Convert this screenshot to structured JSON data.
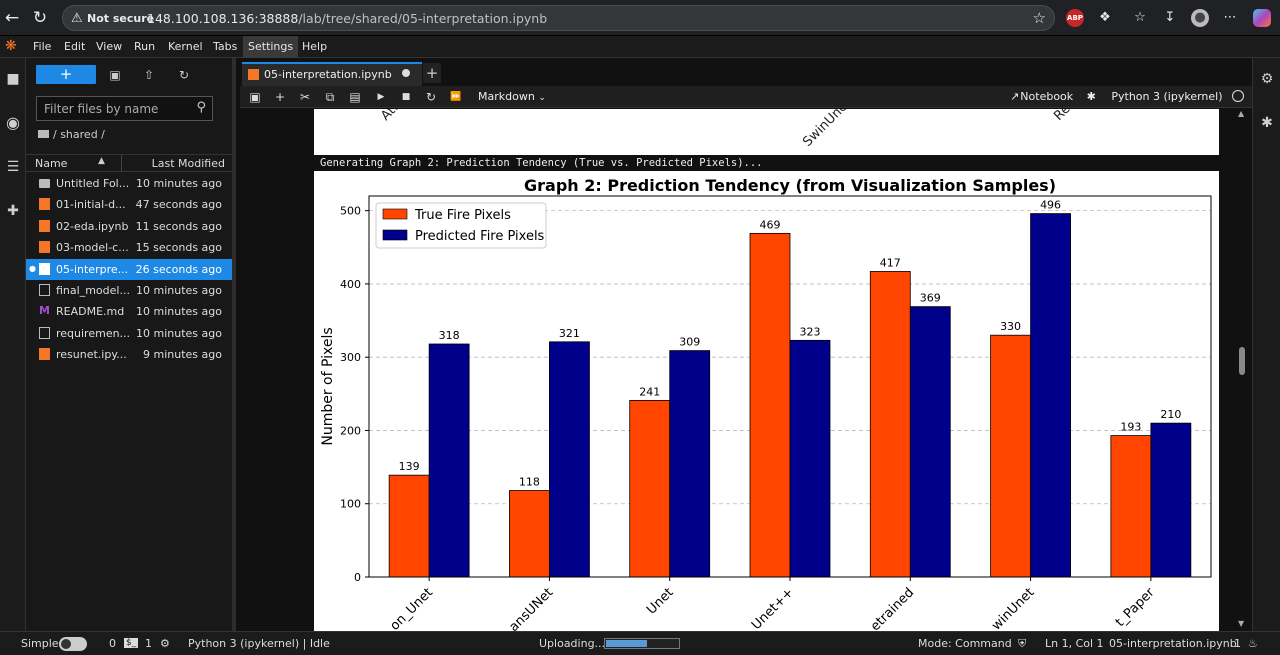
{
  "browser": {
    "security_label": "Not secure",
    "url_host": "148.100.108.136:38888",
    "url_path": "/lab/tree/shared/05-interpretation.ipynb"
  },
  "menu": [
    "File",
    "Edit",
    "View",
    "Run",
    "Kernel",
    "Tabs",
    "Settings",
    "Help"
  ],
  "menu_active": "Settings",
  "filebrowser": {
    "new_label": "+",
    "filter_placeholder": "Filter files by name",
    "breadcrumb": "/ shared /",
    "col_name": "Name",
    "col_modified": "Last Modified",
    "files": [
      {
        "name": "Untitled Fol...",
        "modified": "10 minutes ago",
        "kind": "folder"
      },
      {
        "name": "01-initial-d...",
        "modified": "47 seconds ago",
        "kind": "notebook"
      },
      {
        "name": "02-eda.ipynb",
        "modified": "11 seconds ago",
        "kind": "notebook"
      },
      {
        "name": "03-model-c...",
        "modified": "15 seconds ago",
        "kind": "notebook"
      },
      {
        "name": "05-interpre...",
        "modified": "26 seconds ago",
        "kind": "notebook",
        "selected": true
      },
      {
        "name": "final_model...",
        "modified": "10 minutes ago",
        "kind": "file"
      },
      {
        "name": "README.md",
        "modified": "10 minutes ago",
        "kind": "markdown"
      },
      {
        "name": "requiremen...",
        "modified": "10 minutes ago",
        "kind": "file"
      },
      {
        "name": "resunet.ipy...",
        "modified": "9 minutes ago",
        "kind": "notebook"
      }
    ]
  },
  "notebook": {
    "tab_title": "05-interpretation.ipynb",
    "cell_type": "Markdown",
    "notebook_label": "Notebook",
    "kernel_label": "Python 3 (ipykernel)",
    "stdout": "Generating Graph 2: Prediction Tendency (True vs. Predicted Pixels)...",
    "prev_chart_tick_fragments": [
      "Att",
      "SwinUne",
      "Re"
    ]
  },
  "status": {
    "mode_simple": "Simple",
    "num_a": "0",
    "num_b": "1",
    "kernel_status": "Python 3 (ipykernel) | Idle",
    "uploading": "Uploading...",
    "upload_progress": 0.57,
    "mode": "Mode: Command",
    "position": "Ln 1, Col 1",
    "file": "05-interpretation.ipynb",
    "count": "1"
  },
  "chart_data": {
    "type": "bar",
    "title": "Graph 2: Prediction Tendency (from Visualization Samples)",
    "ylabel": "Number of Pixels",
    "xlabel": "",
    "categories": [
      "on_Unet",
      "ansUNet",
      "Unet",
      "Unet++",
      "etrained",
      "winUnet",
      "t_Paper"
    ],
    "series": [
      {
        "name": "True Fire Pixels",
        "color": "#ff4500",
        "values": [
          139,
          118,
          241,
          469,
          417,
          330,
          193
        ]
      },
      {
        "name": "Predicted Fire Pixels",
        "color": "#00008b",
        "values": [
          318,
          321,
          309,
          323,
          369,
          496,
          210
        ]
      }
    ],
    "ylim": [
      0,
      520
    ],
    "yticks": [
      0,
      100,
      200,
      300,
      400,
      500
    ],
    "grid": true,
    "legend_position": "top-left"
  }
}
